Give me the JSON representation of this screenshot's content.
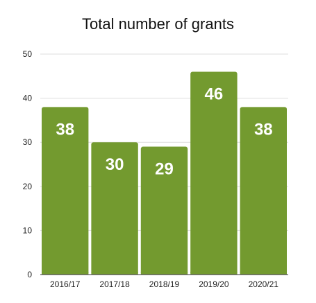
{
  "chart_data": {
    "type": "bar",
    "title": "Total number of grants",
    "categories": [
      "2016/17",
      "2017/18",
      "2018/19",
      "2019/20",
      "2020/21"
    ],
    "values": [
      38,
      30,
      29,
      46,
      38
    ],
    "ylim": [
      0,
      50
    ],
    "yticks": [
      0,
      10,
      20,
      30,
      40,
      50
    ],
    "grid": true,
    "bar_color": "#739a2f",
    "data_label_color": "#ffffff"
  }
}
